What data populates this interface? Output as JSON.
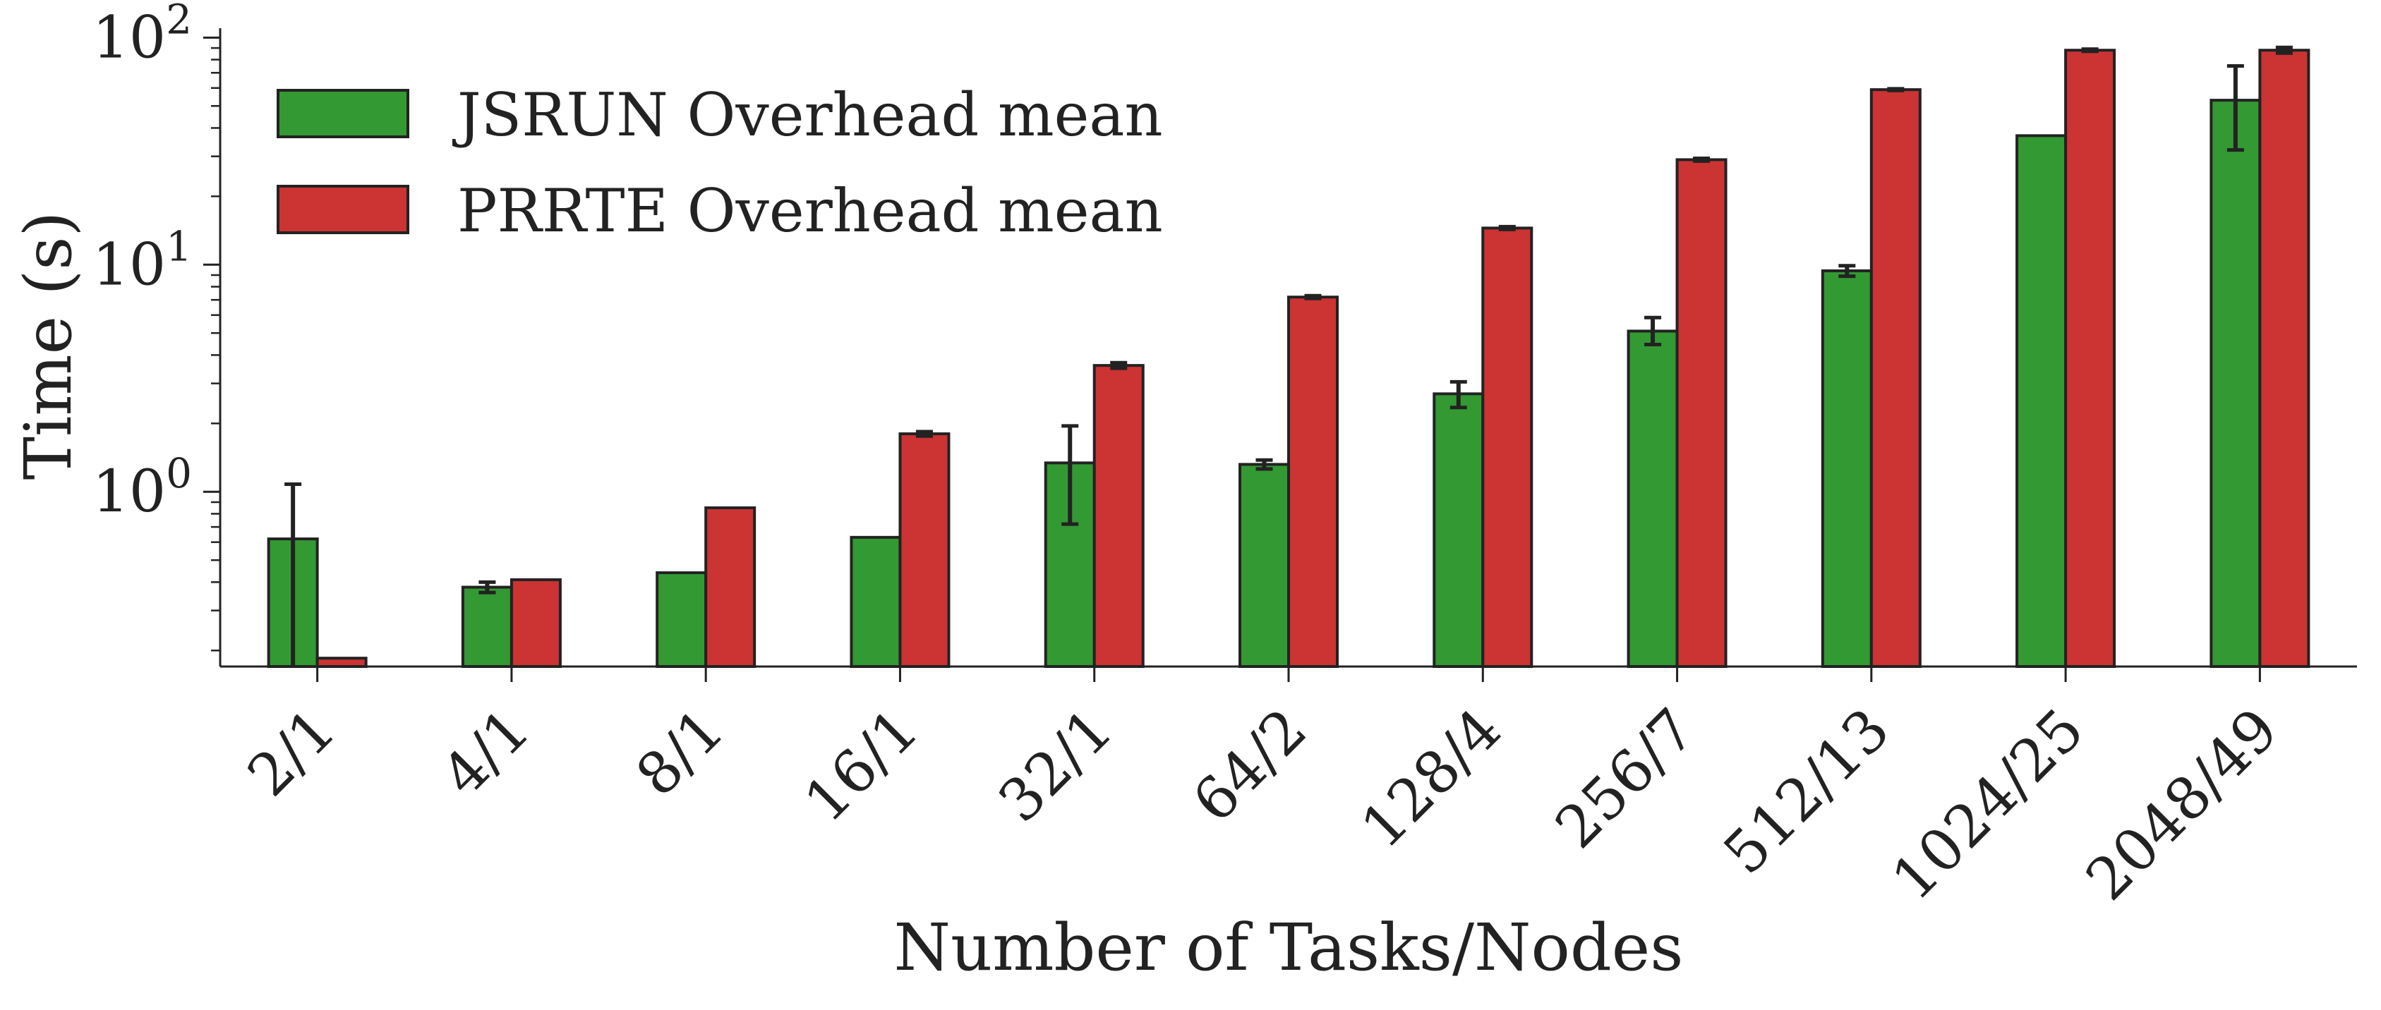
{
  "chart_data": {
    "type": "bar",
    "title": "",
    "xlabel": "Number of Tasks/Nodes",
    "ylabel": "Time (s)",
    "yscale": "log",
    "ylim": [
      0.17,
      110
    ],
    "grid": false,
    "legend_position": "top-left",
    "categories": [
      "2/1",
      "4/1",
      "8/1",
      "16/1",
      "32/1",
      "64/2",
      "128/4",
      "256/7",
      "512/13",
      "1024/25",
      "2048/49"
    ],
    "yticks": [
      {
        "value": 1,
        "base": "10",
        "exp": "0"
      },
      {
        "value": 10,
        "base": "10",
        "exp": "1"
      },
      {
        "value": 100,
        "base": "10",
        "exp": "2"
      }
    ],
    "series": [
      {
        "name": "JSRUN Overhead mean",
        "color": "#339933",
        "values": [
          0.62,
          0.38,
          0.44,
          0.63,
          1.34,
          1.32,
          2.7,
          5.1,
          9.4,
          37,
          53
        ],
        "errors": [
          [
            0.17,
            1.08
          ],
          [
            0.36,
            0.4
          ],
          null,
          null,
          [
            0.72,
            1.95
          ],
          [
            1.26,
            1.38
          ],
          [
            2.35,
            3.05
          ],
          [
            4.45,
            5.85
          ],
          [
            8.9,
            9.9
          ],
          null,
          [
            32,
            75
          ]
        ]
      },
      {
        "name": "PRRTE Overhead mean",
        "color": "#cc3333",
        "values": [
          0.185,
          0.41,
          0.85,
          1.8,
          3.6,
          7.2,
          14.5,
          29,
          59,
          88,
          88
        ],
        "errors": [
          null,
          null,
          null,
          [
            1.76,
            1.84
          ],
          [
            3.5,
            3.7
          ],
          [
            7.1,
            7.3
          ],
          [
            14.3,
            14.7
          ],
          [
            28.6,
            29.4
          ],
          [
            58.5,
            59.5
          ],
          [
            87,
            89
          ],
          [
            85.5,
            90.5
          ]
        ]
      }
    ]
  }
}
